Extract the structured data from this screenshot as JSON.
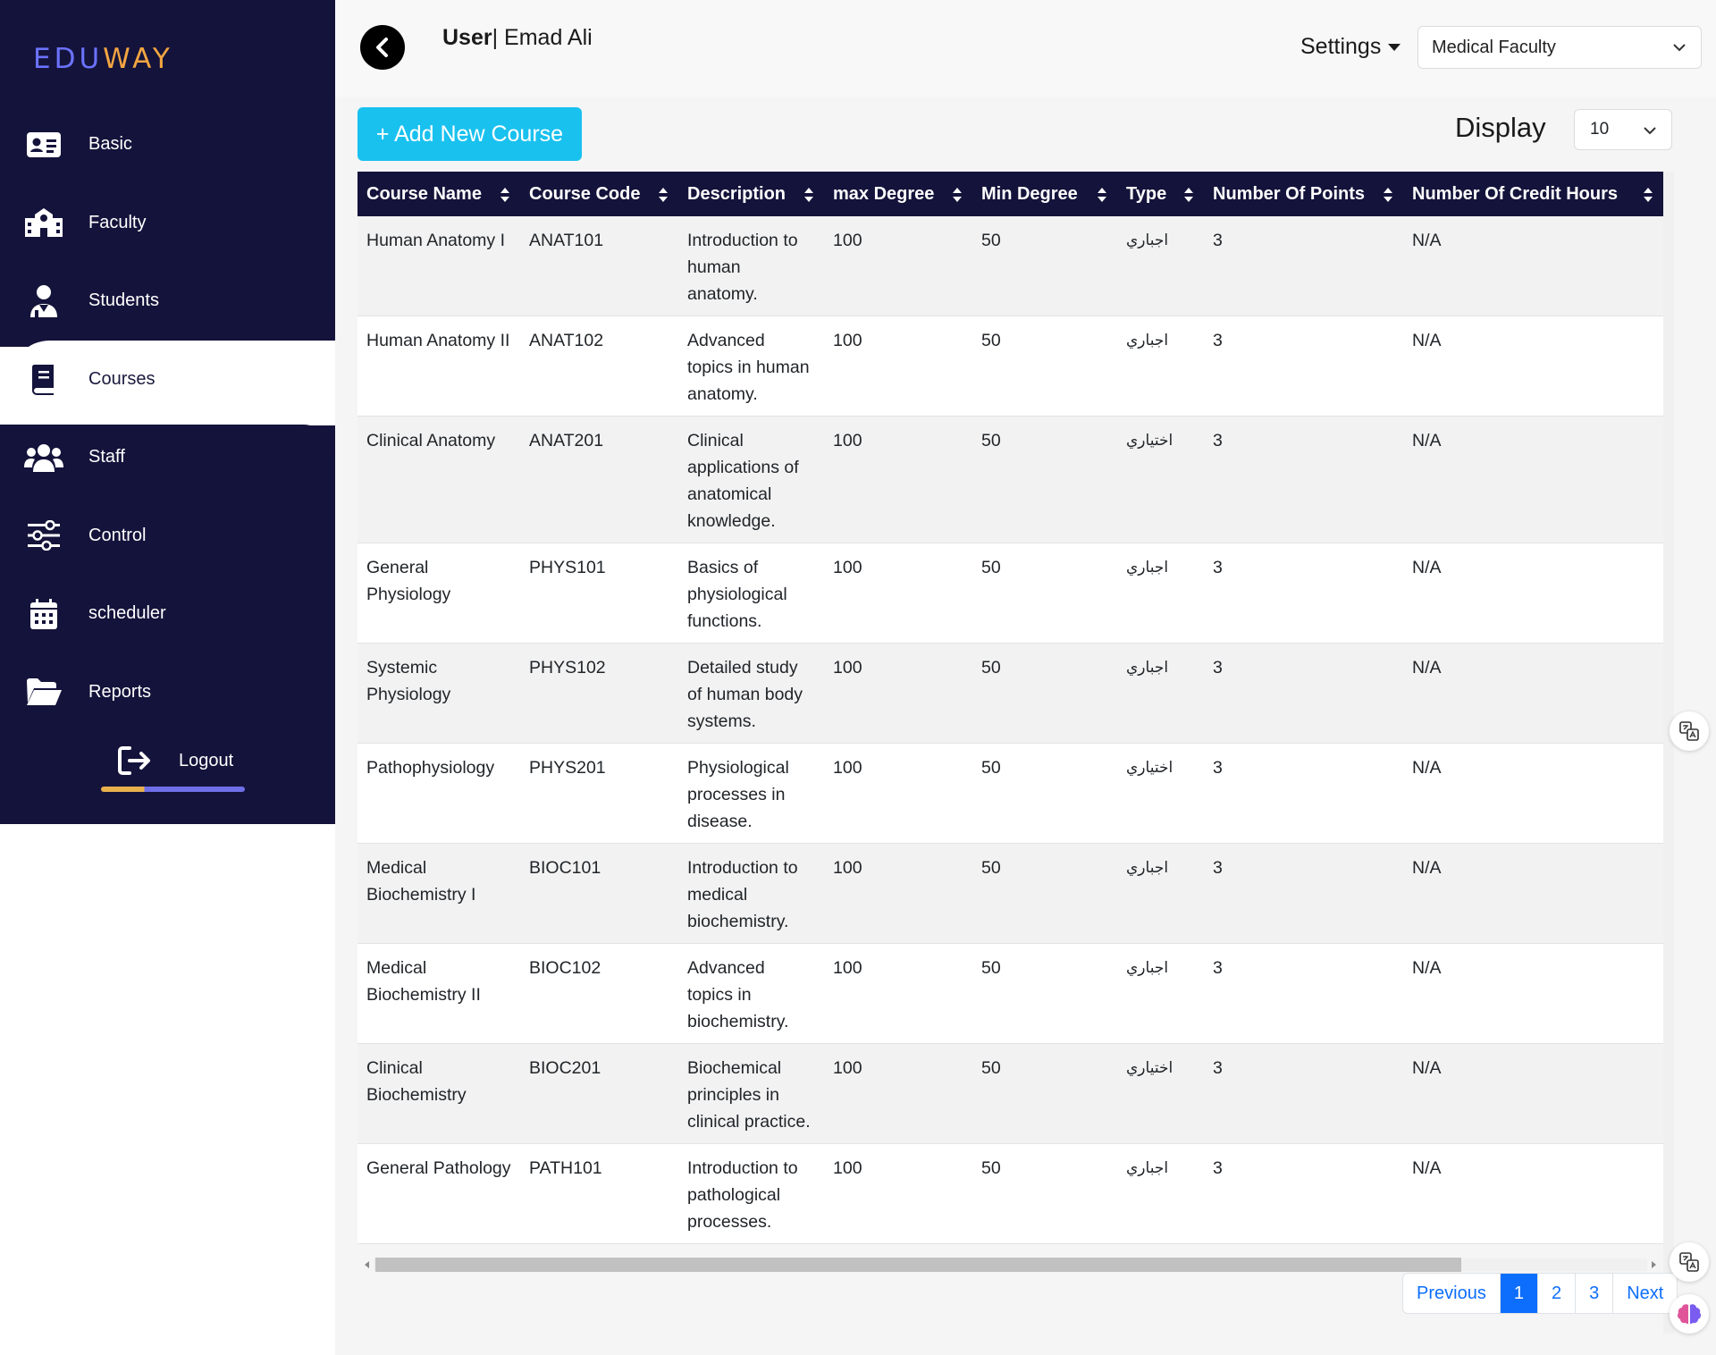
{
  "sidebar": {
    "logo_part1": "EDU",
    "logo_part2": "WAY",
    "items": [
      {
        "label": "Basic",
        "icon": "id-card-icon"
      },
      {
        "label": "Faculty",
        "icon": "school-building-icon"
      },
      {
        "label": "Students",
        "icon": "student-icon"
      },
      {
        "label": "Courses",
        "icon": "book-icon",
        "active": true
      },
      {
        "label": "Staff",
        "icon": "users-icon"
      },
      {
        "label": "Control",
        "icon": "sliders-icon"
      },
      {
        "label": "scheduler",
        "icon": "calendar-icon"
      },
      {
        "label": "Reports",
        "icon": "folder-open-icon"
      }
    ],
    "logout_label": "Logout"
  },
  "header": {
    "user_prefix": "User",
    "user_name": "| Emad Ali",
    "settings_label": "Settings",
    "faculty_selected": "Medical Faculty"
  },
  "toolbar": {
    "add_label": "+ Add New Course",
    "display_label": "Display",
    "display_value": "10"
  },
  "table": {
    "columns": [
      "Course Name",
      "Course Code",
      "Description",
      "max Degree",
      "Min Degree",
      "Type",
      "Number Of Points",
      "Number Of Credit Hours"
    ],
    "rows": [
      {
        "name": "Human Anatomy I",
        "code": "ANAT101",
        "desc": "Introduction to human anatomy.",
        "max": "100",
        "min": "50",
        "type": "اجباري",
        "points": "3",
        "hours": "N/A"
      },
      {
        "name": "Human Anatomy II",
        "code": "ANAT102",
        "desc": "Advanced topics in human anatomy.",
        "max": "100",
        "min": "50",
        "type": "اجباري",
        "points": "3",
        "hours": "N/A"
      },
      {
        "name": "Clinical Anatomy",
        "code": "ANAT201",
        "desc": "Clinical applications of anatomical knowledge.",
        "max": "100",
        "min": "50",
        "type": "اختياري",
        "points": "3",
        "hours": "N/A"
      },
      {
        "name": "General Physiology",
        "code": "PHYS101",
        "desc": "Basics of physiological functions.",
        "max": "100",
        "min": "50",
        "type": "اجباري",
        "points": "3",
        "hours": "N/A"
      },
      {
        "name": "Systemic Physiology",
        "code": "PHYS102",
        "desc": "Detailed study of human body systems.",
        "max": "100",
        "min": "50",
        "type": "اجباري",
        "points": "3",
        "hours": "N/A"
      },
      {
        "name": "Pathophysiology",
        "code": "PHYS201",
        "desc": "Physiological processes in disease.",
        "max": "100",
        "min": "50",
        "type": "اختياري",
        "points": "3",
        "hours": "N/A"
      },
      {
        "name": "Medical Biochemistry I",
        "code": "BIOC101",
        "desc": "Introduction to medical biochemistry.",
        "max": "100",
        "min": "50",
        "type": "اجباري",
        "points": "3",
        "hours": "N/A"
      },
      {
        "name": "Medical Biochemistry II",
        "code": "BIOC102",
        "desc": "Advanced topics in biochemistry.",
        "max": "100",
        "min": "50",
        "type": "اجباري",
        "points": "3",
        "hours": "N/A"
      },
      {
        "name": "Clinical Biochemistry",
        "code": "BIOC201",
        "desc": "Biochemical principles in clinical practice.",
        "max": "100",
        "min": "50",
        "type": "اختياري",
        "points": "3",
        "hours": "N/A"
      },
      {
        "name": "General Pathology",
        "code": "PATH101",
        "desc": "Introduction to pathological processes.",
        "max": "100",
        "min": "50",
        "type": "اجباري",
        "points": "3",
        "hours": "N/A"
      }
    ]
  },
  "pagination": {
    "previous": "Previous",
    "pages": [
      "1",
      "2",
      "3"
    ],
    "current": "1",
    "next": "Next"
  },
  "colors": {
    "sidebar_bg": "#14133b",
    "accent_cyan": "#19c1ef",
    "primary_blue": "#0d6efd",
    "logo_blue": "#6b73ff",
    "logo_orange": "#f2a541"
  }
}
